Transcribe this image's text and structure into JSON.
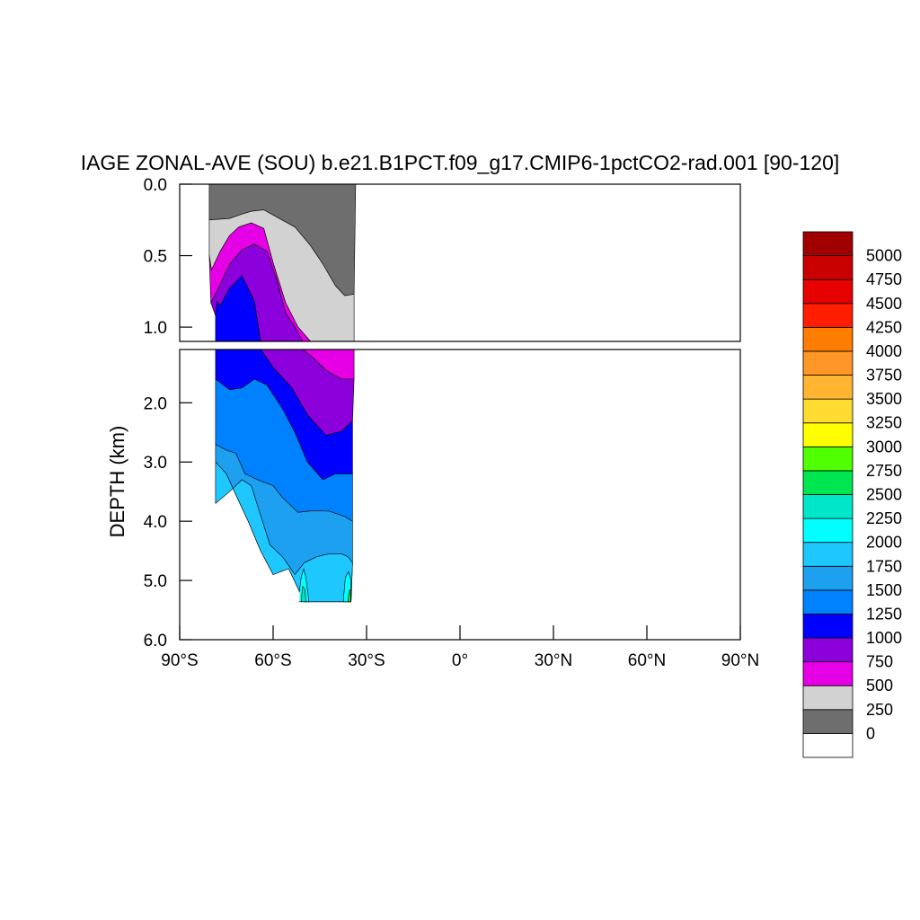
{
  "chart_data": {
    "type": "contour",
    "title": "IAGE ZONAL-AVE (SOU) b.e21.B1PCT.f09_g17.CMIP6-1pctCO2-rad.001 [90-120]",
    "ylabel": "DEPTH (km)",
    "xlabel": "",
    "x_ticks": [
      {
        "value": -90,
        "label": "90°S"
      },
      {
        "value": -60,
        "label": "60°S"
      },
      {
        "value": -30,
        "label": "30°S"
      },
      {
        "value": 0,
        "label": "0°"
      },
      {
        "value": 30,
        "label": "30°N"
      },
      {
        "value": 60,
        "label": "60°N"
      },
      {
        "value": 90,
        "label": "90°N"
      }
    ],
    "upper_panel": {
      "ylim": [
        0.0,
        1.1
      ],
      "y_ticks": [
        {
          "value": 0.0,
          "label": "0.0"
        },
        {
          "value": 0.5,
          "label": "0.5"
        },
        {
          "value": 1.0,
          "label": "1.0"
        }
      ]
    },
    "lower_panel": {
      "ylim": [
        1.1,
        6.0
      ],
      "y_ticks": [
        {
          "value": 2.0,
          "label": "2.0"
        },
        {
          "value": 3.0,
          "label": "3.0"
        },
        {
          "value": 4.0,
          "label": "4.0"
        },
        {
          "value": 5.0,
          "label": "5.0"
        },
        {
          "value": 6.0,
          "label": "6.0"
        }
      ]
    },
    "colorbar": {
      "labels": [
        "0",
        "250",
        "500",
        "750",
        "1000",
        "1250",
        "1500",
        "1750",
        "2000",
        "2250",
        "2500",
        "2750",
        "3000",
        "3250",
        "3500",
        "3750",
        "4000",
        "4250",
        "4500",
        "4750",
        "5000"
      ],
      "colors": [
        "#ffffff",
        "#6e6e6e",
        "#d2d2d2",
        "#e600e6",
        "#8c00dc",
        "#0000ff",
        "#0082ff",
        "#1ea0f0",
        "#1ec8ff",
        "#00ffff",
        "#00e6c8",
        "#00e650",
        "#50ff00",
        "#ffff00",
        "#ffdc32",
        "#ffb432",
        "#ff9628",
        "#ff7d00",
        "#ff1e00",
        "#e60000",
        "#c80000",
        "#a00000"
      ]
    },
    "contour_bands": [
      {
        "level": "0-250",
        "color": "#6e6e6e",
        "polygon": [
          [
            -80.5,
            0
          ],
          [
            -38,
            0
          ],
          [
            -33.5,
            0
          ],
          [
            -34,
            0.77
          ],
          [
            -37,
            0.78
          ],
          [
            -40,
            0.71
          ],
          [
            -44,
            0.56
          ],
          [
            -48,
            0.43
          ],
          [
            -53,
            0.3
          ],
          [
            -58,
            0.24
          ],
          [
            -63,
            0.18
          ],
          [
            -67,
            0.19
          ],
          [
            -70,
            0.21
          ],
          [
            -74,
            0.24
          ],
          [
            -80.5,
            0.25
          ]
        ]
      },
      {
        "level": "250-500",
        "color": "#d2d2d2",
        "polygon": [
          [
            -80.5,
            0.25
          ],
          [
            -74,
            0.24
          ],
          [
            -70,
            0.21
          ],
          [
            -67,
            0.19
          ],
          [
            -63,
            0.18
          ],
          [
            -58,
            0.24
          ],
          [
            -53,
            0.3
          ],
          [
            -48,
            0.43
          ],
          [
            -44,
            0.56
          ],
          [
            -40,
            0.71
          ],
          [
            -37,
            0.78
          ],
          [
            -34,
            0.77
          ],
          [
            -34,
            1.1
          ],
          [
            -48,
            1.1
          ],
          [
            -52,
            1.0
          ],
          [
            -56,
            0.83
          ],
          [
            -60,
            0.55
          ],
          [
            -63,
            0.31
          ],
          [
            -67,
            0.27
          ],
          [
            -71,
            0.3
          ],
          [
            -74,
            0.36
          ],
          [
            -77,
            0.47
          ],
          [
            -79.8,
            0.6
          ],
          [
            -80.5,
            0.5
          ]
        ]
      },
      {
        "level": "500-750",
        "color": "#e600e6",
        "polygon": [
          [
            -80.5,
            0.5
          ],
          [
            -79.8,
            0.6
          ],
          [
            -77,
            0.47
          ],
          [
            -74,
            0.36
          ],
          [
            -71,
            0.3
          ],
          [
            -67,
            0.27
          ],
          [
            -63,
            0.31
          ],
          [
            -60,
            0.55
          ],
          [
            -56,
            0.83
          ],
          [
            -52,
            1.0
          ],
          [
            -48,
            1.1
          ],
          [
            -34,
            1.1
          ],
          [
            -34,
            1.6
          ],
          [
            -38,
            1.6
          ],
          [
            -43,
            1.45
          ],
          [
            -48,
            1.2
          ],
          [
            -53,
            1.0
          ],
          [
            -56,
            0.9
          ],
          [
            -59,
            0.66
          ],
          [
            -62,
            0.47
          ],
          [
            -66,
            0.42
          ],
          [
            -70,
            0.46
          ],
          [
            -74,
            0.56
          ],
          [
            -78,
            0.75
          ],
          [
            -80,
            0.83
          ]
        ]
      },
      {
        "level": "750-1000",
        "color": "#8c00dc",
        "polygon": [
          [
            -80,
            0.83
          ],
          [
            -78,
            0.75
          ],
          [
            -74,
            0.56
          ],
          [
            -70,
            0.46
          ],
          [
            -66,
            0.42
          ],
          [
            -62,
            0.47
          ],
          [
            -59,
            0.66
          ],
          [
            -56,
            0.9
          ],
          [
            -53,
            1.0
          ],
          [
            -48,
            1.2
          ],
          [
            -43,
            1.45
          ],
          [
            -38,
            1.6
          ],
          [
            -34,
            1.6
          ],
          [
            -34.5,
            2.3
          ],
          [
            -38,
            2.48
          ],
          [
            -43,
            2.55
          ],
          [
            -49,
            2.2
          ],
          [
            -54,
            1.75
          ],
          [
            -60,
            1.4
          ],
          [
            -64,
            1.1
          ],
          [
            -66,
            0.82
          ],
          [
            -70,
            0.64
          ],
          [
            -74,
            0.73
          ],
          [
            -77,
            0.85
          ],
          [
            -78,
            0.82
          ],
          [
            -78.5,
            0.92
          ]
        ]
      },
      {
        "level": "1000-1250",
        "color": "#0000ff",
        "polygon": [
          [
            -78.5,
            0.92
          ],
          [
            -78,
            0.82
          ],
          [
            -77,
            0.85
          ],
          [
            -74,
            0.73
          ],
          [
            -70,
            0.64
          ],
          [
            -66,
            0.82
          ],
          [
            -64,
            1.1
          ],
          [
            -60,
            1.4
          ],
          [
            -54,
            1.75
          ],
          [
            -49,
            2.2
          ],
          [
            -43,
            2.55
          ],
          [
            -38,
            2.48
          ],
          [
            -34.5,
            2.3
          ],
          [
            -34.5,
            3.2
          ],
          [
            -40,
            3.2
          ],
          [
            -44,
            3.3
          ],
          [
            -49,
            3.0
          ],
          [
            -53,
            2.5
          ],
          [
            -57,
            2.1
          ],
          [
            -62,
            1.7
          ],
          [
            -66,
            1.6
          ],
          [
            -70,
            1.75
          ],
          [
            -74,
            1.78
          ],
          [
            -78.5,
            1.6
          ]
        ]
      },
      {
        "level": "1250-1500",
        "color": "#0082ff",
        "polygon": [
          [
            -78.5,
            1.6
          ],
          [
            -74,
            1.78
          ],
          [
            -70,
            1.75
          ],
          [
            -66,
            1.6
          ],
          [
            -62,
            1.7
          ],
          [
            -57,
            2.1
          ],
          [
            -53,
            2.5
          ],
          [
            -49,
            3.0
          ],
          [
            -44,
            3.3
          ],
          [
            -40,
            3.2
          ],
          [
            -34.5,
            3.2
          ],
          [
            -34.5,
            4.0
          ],
          [
            -37,
            3.92
          ],
          [
            -42,
            3.83
          ],
          [
            -47,
            3.82
          ],
          [
            -52,
            3.85
          ],
          [
            -57,
            3.6
          ],
          [
            -60,
            3.4
          ],
          [
            -65,
            3.3
          ],
          [
            -69,
            3.2
          ],
          [
            -72,
            2.85
          ],
          [
            -75,
            2.8
          ],
          [
            -78.5,
            2.7
          ]
        ]
      },
      {
        "level": "1500-1750",
        "color": "#1ea0f0",
        "polygon": [
          [
            -78.5,
            2.7
          ],
          [
            -75,
            2.8
          ],
          [
            -72,
            2.85
          ],
          [
            -69,
            3.2
          ],
          [
            -65,
            3.3
          ],
          [
            -60,
            3.4
          ],
          [
            -57,
            3.6
          ],
          [
            -52,
            3.85
          ],
          [
            -47,
            3.82
          ],
          [
            -42,
            3.83
          ],
          [
            -37,
            3.92
          ],
          [
            -34.5,
            4.0
          ],
          [
            -34.5,
            4.7
          ],
          [
            -35,
            5.36
          ],
          [
            -50,
            5.36
          ],
          [
            -55,
            4.8
          ],
          [
            -60,
            4.9
          ],
          [
            -64,
            4.5
          ],
          [
            -68,
            4.0
          ],
          [
            -72,
            3.55
          ],
          [
            -75,
            3.2
          ],
          [
            -78.5,
            3.0
          ]
        ]
      },
      {
        "level": "1750-2000",
        "color": "#1ec8ff",
        "polygon": [
          [
            -78.5,
            3.0
          ],
          [
            -75,
            3.2
          ],
          [
            -72,
            3.55
          ],
          [
            -68,
            4.0
          ],
          [
            -64,
            4.5
          ],
          [
            -60,
            4.9
          ],
          [
            -55,
            4.8
          ],
          [
            -50,
            5.36
          ],
          [
            -35,
            5.36
          ],
          [
            -34.5,
            4.7
          ],
          [
            -36,
            4.6
          ],
          [
            -38,
            4.55
          ],
          [
            -42,
            4.55
          ],
          [
            -46,
            4.6
          ],
          [
            -50,
            4.7
          ],
          [
            -53,
            4.9
          ],
          [
            -57,
            4.6
          ],
          [
            -61,
            4.4
          ],
          [
            -64,
            3.9
          ],
          [
            -67,
            3.4
          ],
          [
            -70,
            3.3
          ],
          [
            -74,
            3.5
          ],
          [
            -78.5,
            3.7
          ]
        ]
      },
      {
        "level": "2000-2250",
        "color": "#00ffff",
        "polygon": [
          [
            -52,
            5.36
          ],
          [
            -51,
            4.95
          ],
          [
            -50.2,
            4.8
          ],
          [
            -49.5,
            4.95
          ],
          [
            -48.5,
            5.36
          ]
        ]
      },
      {
        "level": "2000-2250",
        "color": "#00ffff",
        "polygon": [
          [
            -37.5,
            5.36
          ],
          [
            -36.8,
            4.95
          ],
          [
            -35.8,
            4.85
          ],
          [
            -35,
            5.0
          ],
          [
            -35,
            5.36
          ]
        ]
      },
      {
        "level": "2250-2500",
        "color": "#00e6c8",
        "polygon": [
          [
            -51,
            5.36
          ],
          [
            -50.5,
            5.1
          ],
          [
            -49.8,
            5.15
          ],
          [
            -49.5,
            5.36
          ]
        ]
      },
      {
        "level": "2500-2750",
        "color": "#00e650",
        "polygon": [
          [
            -36,
            5.36
          ],
          [
            -35.6,
            5.18
          ],
          [
            -35.1,
            5.15
          ],
          [
            -35.1,
            5.36
          ]
        ]
      }
    ],
    "missing_region_note": ""
  }
}
